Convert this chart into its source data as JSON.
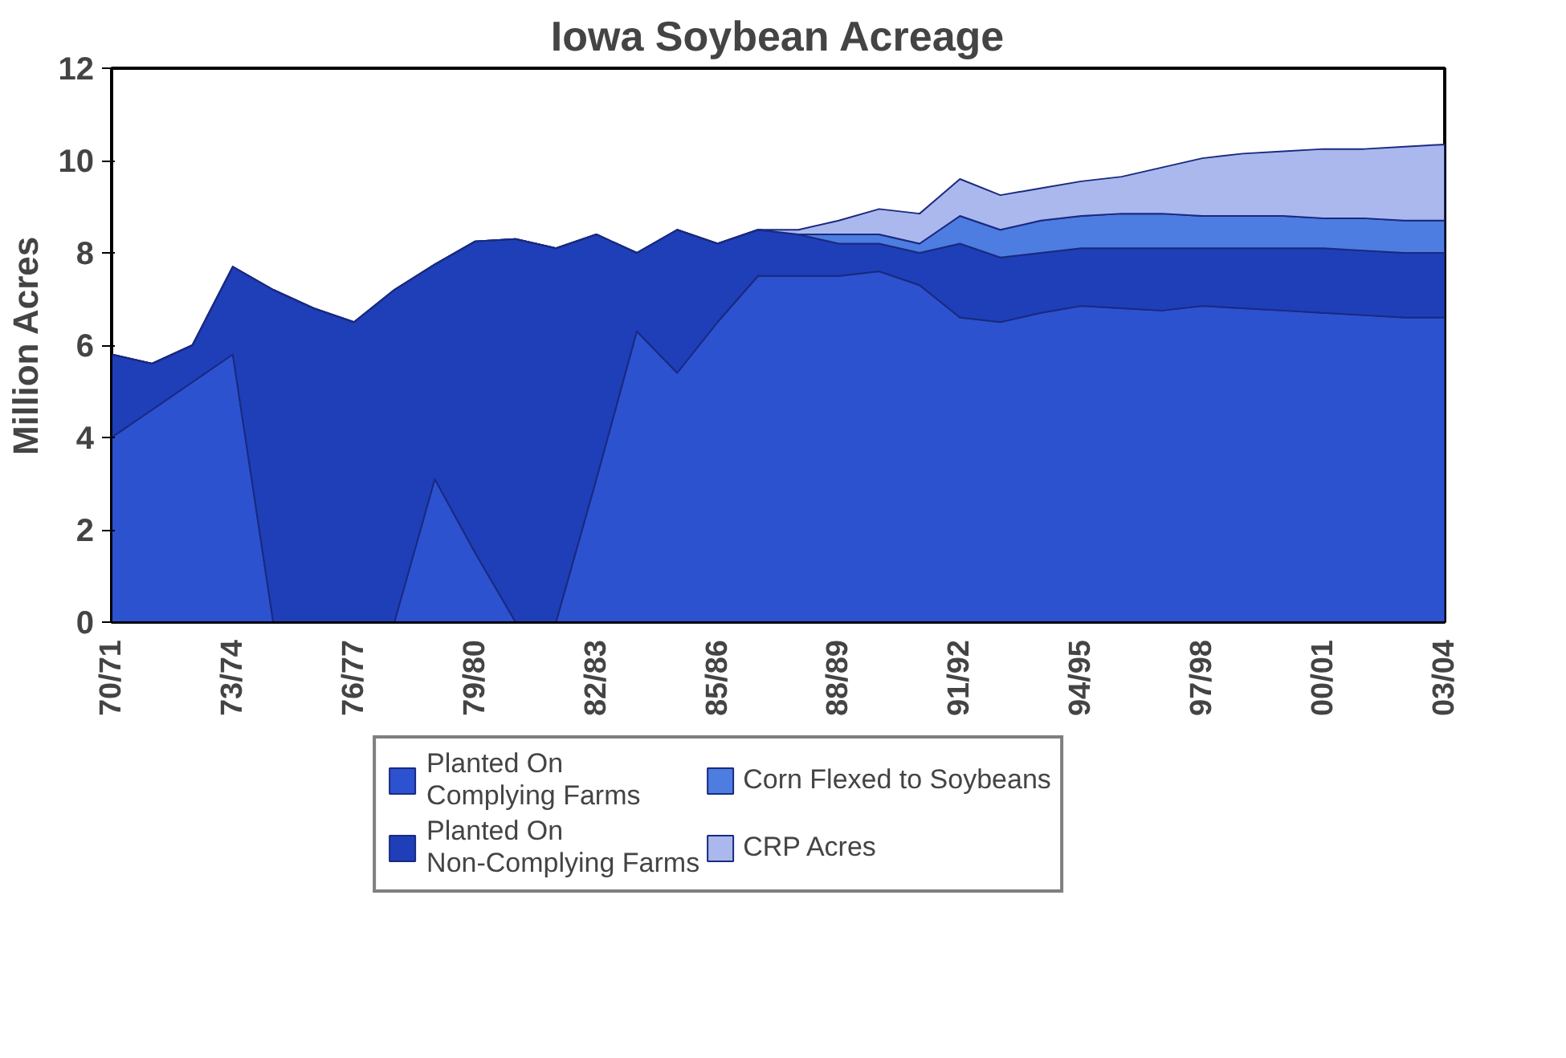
{
  "chart_data": {
    "type": "area",
    "stacked": true,
    "title": "Iowa Soybean Acreage",
    "ylabel": "Million Acres",
    "categories": [
      "70/71",
      null,
      null,
      "73/74",
      null,
      null,
      "76/77",
      null,
      null,
      "79/80",
      null,
      null,
      "82/83",
      null,
      null,
      "85/86",
      null,
      null,
      "88/89",
      null,
      null,
      "91/92",
      null,
      null,
      "94/95",
      null,
      null,
      "97/98",
      null,
      null,
      "00/01",
      null,
      null,
      "03/04"
    ],
    "ylim": [
      0,
      12
    ],
    "yticks": [
      0,
      2,
      4,
      6,
      8,
      10,
      12
    ],
    "grid": false,
    "legend": "bottom",
    "series": [
      {
        "name": "Planted On\nComplying Farms",
        "color": "#2d52d0",
        "values": [
          4.0,
          4.6,
          5.2,
          5.8,
          0,
          0,
          0,
          0,
          3.1,
          1.5,
          0,
          0,
          3.1,
          6.3,
          5.4,
          6.5,
          7.5,
          7.5,
          7.5,
          7.6,
          7.3,
          6.6,
          6.5,
          6.7,
          6.85,
          6.8,
          6.75,
          6.85,
          6.8,
          6.75,
          6.7,
          6.65,
          6.6,
          6.6
        ]
      },
      {
        "name": "Planted On\nNon-Complying Farms",
        "color": "#1f3fb8",
        "values": [
          1.8,
          1.0,
          0.8,
          1.9,
          7.2,
          6.8,
          6.5,
          7.2,
          4.65,
          6.75,
          8.3,
          8.1,
          5.3,
          1.7,
          3.1,
          1.7,
          1.0,
          0.9,
          0.7,
          0.6,
          0.7,
          1.6,
          1.4,
          1.3,
          1.25,
          1.3,
          1.35,
          1.25,
          1.3,
          1.35,
          1.4,
          1.4,
          1.4,
          1.4
        ]
      },
      {
        "name": "Corn Flexed to Soybeans",
        "color": "#4d7de0",
        "values": [
          0,
          0,
          0,
          0,
          0,
          0,
          0,
          0,
          0,
          0,
          0,
          0,
          0,
          0,
          0,
          0,
          0,
          0,
          0.2,
          0.2,
          0.2,
          0.6,
          0.6,
          0.7,
          0.7,
          0.75,
          0.75,
          0.7,
          0.7,
          0.7,
          0.65,
          0.7,
          0.7,
          0.7
        ]
      },
      {
        "name": "CRP Acres",
        "color": "#aab8ee",
        "values": [
          0,
          0,
          0,
          0,
          0,
          0,
          0,
          0,
          0,
          0,
          0,
          0,
          0,
          0,
          0,
          0,
          0,
          0.1,
          0.3,
          0.55,
          0.65,
          0.8,
          0.75,
          0.7,
          0.75,
          0.8,
          1.0,
          1.25,
          1.35,
          1.4,
          1.5,
          1.5,
          1.6,
          1.65
        ]
      }
    ]
  }
}
